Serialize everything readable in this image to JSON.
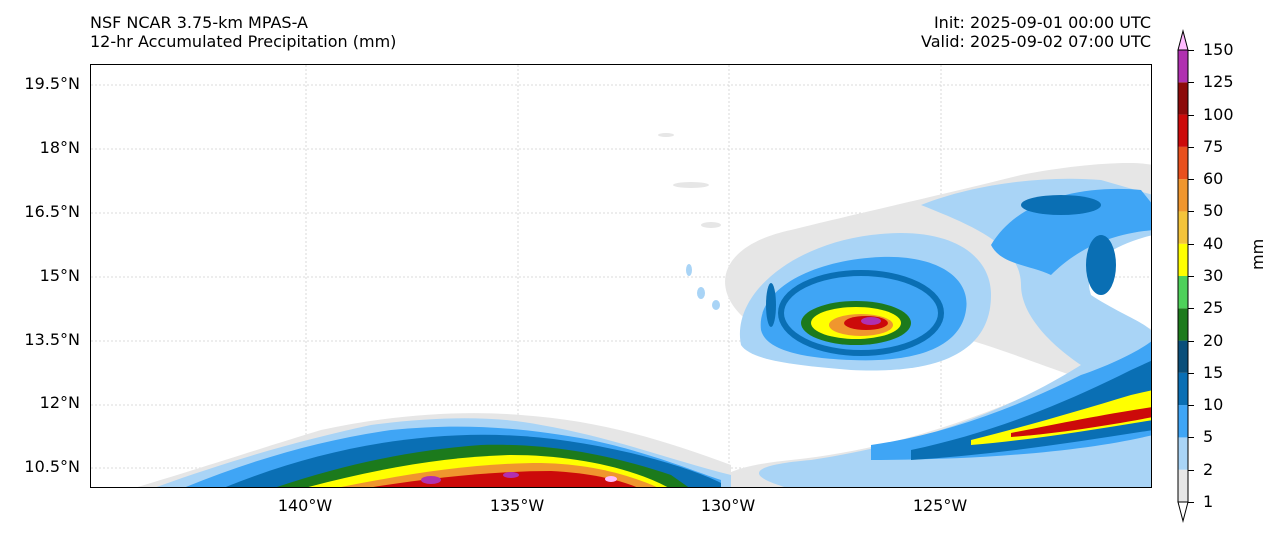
{
  "title": {
    "left_line1": "NSF NCAR 3.75-km MPAS-A",
    "left_line2": "12-hr Accumulated Precipitation (mm)",
    "right_line1": "Init: 2025-09-01 00:00 UTC",
    "right_line2": "Valid: 2025-09-02 07:00 UTC"
  },
  "map": {
    "lat_ticks": [
      "19.5°N",
      "18°N",
      "16.5°N",
      "15°N",
      "13.5°N",
      "12°N",
      "10.5°N"
    ],
    "lon_ticks": [
      "140°W",
      "135°W",
      "130°W",
      "125°W"
    ]
  },
  "colorbar": {
    "units": "mm",
    "levels": [
      "1",
      "2",
      "5",
      "10",
      "15",
      "20",
      "25",
      "30",
      "40",
      "50",
      "60",
      "75",
      "100",
      "125",
      "150"
    ],
    "colors": [
      "#e6e6e6",
      "#a9d4f6",
      "#3fa5f5",
      "#0a6fb4",
      "#0a4f7a",
      "#1c7a1c",
      "#4ed15a",
      "#ffff00",
      "#f4c43a",
      "#f0962e",
      "#e8501d",
      "#cc0a0a",
      "#8c0a0a",
      "#b030b0",
      "#ffbbff"
    ]
  }
}
